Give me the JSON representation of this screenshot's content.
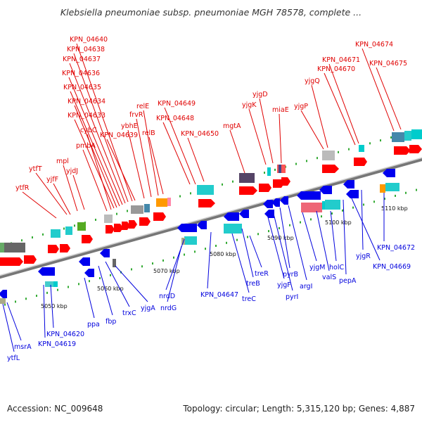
{
  "title": "Klebsiella pneumoniae subsp. pneumoniae MGH 78578, complete ...",
  "footer": {
    "accession": "Accession: NC_009648",
    "stats": "Topology: circular; Length: 5,315,120 bp; Genes: 4,887"
  },
  "colors": {
    "forward_label": "#e00000",
    "reverse_label": "#0000dd",
    "backbone": "#888888",
    "forward_cds": "#ff0000",
    "reverse_cds": "#0000ee"
  },
  "kbp_ticks": [
    "5050 kbp",
    "5060 kbp",
    "5070 kbp",
    "5080 kbp",
    "5090 kbp",
    "5100 kbp",
    "5110 kbp"
  ],
  "forward_genes": [
    "ytfR",
    "ytfT",
    "yjfF",
    "mpl",
    "yjdJ",
    "pmbA",
    "cybC",
    "KPN_04633",
    "KPN_04634",
    "KPN_04635",
    "KPN_04636",
    "KPN_04637",
    "KPN_04638",
    "KPN_04640",
    "KPN_04639",
    "ybhE",
    "frvR",
    "relE",
    "relB",
    "KPN_04649",
    "KPN_04648",
    "KPN_04650",
    "mgtA",
    "yjgK",
    "yjgD",
    "miaE",
    "yjgP",
    "yjgQ",
    "KPN_04670",
    "KPN_04671",
    "KPN_04674",
    "KPN_04675"
  ],
  "reverse_genes": [
    "ytfL",
    "msrA",
    "KPN_04619",
    "KPN_04620",
    "ppa",
    "fbp",
    "trxC",
    "yjgA",
    "nrdG",
    "nrdD",
    "KPN_04647",
    "treC",
    "treB",
    "treR",
    "yjgF",
    "pyrI",
    "pyrB",
    "argI",
    "yjgM",
    "valS",
    "holC",
    "pepA",
    "KPN_04669",
    "yjgR",
    "KPN_04672"
  ]
}
